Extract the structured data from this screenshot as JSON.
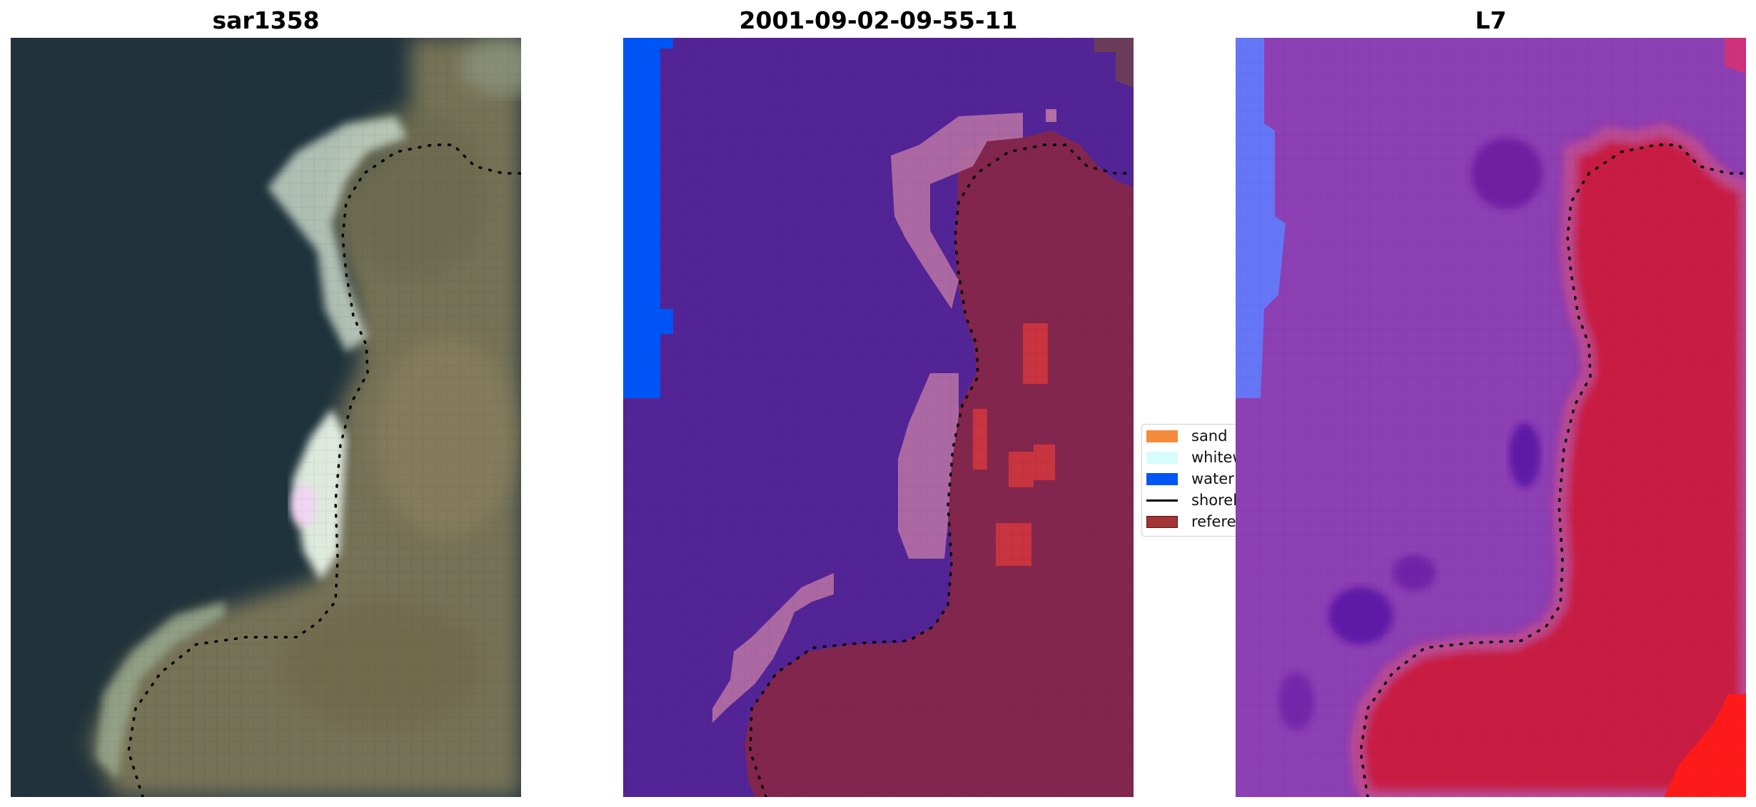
{
  "panels": [
    {
      "title": "sar1358"
    },
    {
      "title": "2001-09-02-09-55-11"
    },
    {
      "title": "L7"
    }
  ],
  "legend": {
    "items": [
      {
        "label": "sand",
        "color": "#f58b3d"
      },
      {
        "label": "whitew",
        "color": "#d6fdfb"
      },
      {
        "label": "water",
        "color": "#0055f7"
      },
      {
        "label": "shorel",
        "color": "#000000"
      },
      {
        "label": "referen",
        "color": "#a23336"
      }
    ]
  },
  "colors": {
    "ocean_dark": "#1f333d",
    "land_olive": "#7a7456",
    "surf_white": "#d9e8dd",
    "class_purple": "#532496",
    "class_land": "#83264e",
    "class_whitewater": "#b46fa4",
    "class_red": "#c8343f",
    "ndwi_purple": "#8d3fb4",
    "ndwi_red": "#c91a43",
    "ndwi_blue": "#6577f6"
  }
}
